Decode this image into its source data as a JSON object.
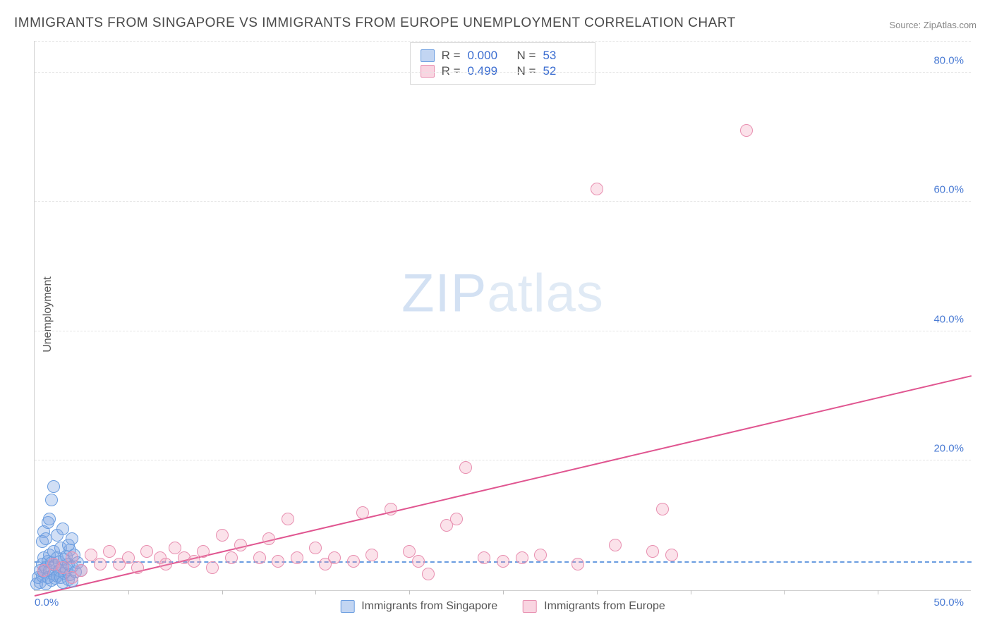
{
  "title": "IMMIGRANTS FROM SINGAPORE VS IMMIGRANTS FROM EUROPE UNEMPLOYMENT CORRELATION CHART",
  "source": "Source: ZipAtlas.com",
  "ylabel": "Unemployment",
  "watermark_a": "ZIP",
  "watermark_b": "atlas",
  "chart": {
    "type": "scatter",
    "xlim": [
      0,
      50
    ],
    "ylim": [
      0,
      85
    ],
    "ytick_values": [
      20,
      40,
      60,
      80
    ],
    "ytick_labels": [
      "20.0%",
      "40.0%",
      "60.0%",
      "80.0%"
    ],
    "xtick_values": [
      5,
      10,
      15,
      20,
      25,
      30,
      35,
      40,
      45
    ],
    "x_corner_left": "0.0%",
    "x_corner_right": "50.0%",
    "background_color": "#ffffff",
    "grid_color": "#e4e4e4",
    "point_radius": 9,
    "series": [
      {
        "name": "Immigrants from Singapore",
        "key": "singapore",
        "color_fill": "rgba(133,172,230,0.38)",
        "color_stroke": "#6a9de0",
        "r_value": "0.000",
        "n_value": "53",
        "trend": {
          "x1": 0,
          "y1": 4.2,
          "x2": 5,
          "y2": 4.2,
          "dashed": true,
          "color": "#6a9de0"
        },
        "points": [
          [
            0.1,
            1.0
          ],
          [
            0.2,
            2.0
          ],
          [
            0.3,
            3.0
          ],
          [
            0.3,
            1.2
          ],
          [
            0.4,
            4.0
          ],
          [
            0.4,
            2.2
          ],
          [
            0.5,
            5.0
          ],
          [
            0.5,
            2.8
          ],
          [
            0.6,
            3.5
          ],
          [
            0.6,
            1.0
          ],
          [
            0.7,
            4.5
          ],
          [
            0.7,
            2.0
          ],
          [
            0.8,
            3.0
          ],
          [
            0.8,
            5.5
          ],
          [
            0.9,
            4.2
          ],
          [
            0.9,
            1.5
          ],
          [
            1.0,
            6.0
          ],
          [
            1.0,
            2.5
          ],
          [
            1.1,
            3.8
          ],
          [
            1.1,
            1.8
          ],
          [
            1.2,
            5.0
          ],
          [
            1.2,
            2.2
          ],
          [
            1.3,
            4.4
          ],
          [
            1.3,
            3.0
          ],
          [
            1.4,
            2.0
          ],
          [
            1.4,
            6.5
          ],
          [
            1.5,
            3.5
          ],
          [
            1.5,
            1.2
          ],
          [
            1.6,
            4.8
          ],
          [
            1.6,
            2.6
          ],
          [
            1.7,
            3.2
          ],
          [
            1.7,
            5.2
          ],
          [
            1.8,
            1.6
          ],
          [
            1.8,
            4.0
          ],
          [
            1.9,
            2.4
          ],
          [
            1.9,
            6.2
          ],
          [
            2.0,
            3.6
          ],
          [
            2.0,
            1.4
          ],
          [
            2.1,
            5.4
          ],
          [
            2.2,
            2.8
          ],
          [
            2.3,
            4.2
          ],
          [
            2.5,
            3.0
          ],
          [
            0.5,
            9.0
          ],
          [
            0.7,
            10.5
          ],
          [
            0.8,
            11.0
          ],
          [
            0.9,
            14.0
          ],
          [
            1.0,
            16.0
          ],
          [
            0.4,
            7.5
          ],
          [
            0.6,
            8.0
          ],
          [
            1.2,
            8.5
          ],
          [
            1.5,
            9.5
          ],
          [
            1.8,
            7.0
          ],
          [
            2.0,
            8.0
          ]
        ]
      },
      {
        "name": "Immigrants from Europe",
        "key": "europe",
        "color_fill": "rgba(240,150,180,0.28)",
        "color_stroke": "#e88fb0",
        "r_value": "0.499",
        "n_value": "52",
        "trend": {
          "x1": 0,
          "y1": -1,
          "x2": 50,
          "y2": 33,
          "dashed": false,
          "color": "#e05590"
        },
        "points": [
          [
            0.5,
            3.0
          ],
          [
            1.0,
            4.0
          ],
          [
            1.5,
            3.5
          ],
          [
            2.0,
            5.0
          ],
          [
            2.5,
            3.0
          ],
          [
            3.0,
            5.5
          ],
          [
            3.5,
            4.0
          ],
          [
            4.0,
            6.0
          ],
          [
            4.5,
            4.0
          ],
          [
            5.0,
            5.0
          ],
          [
            5.5,
            3.5
          ],
          [
            6.0,
            6.0
          ],
          [
            6.7,
            5.0
          ],
          [
            7.0,
            4.0
          ],
          [
            7.5,
            6.5
          ],
          [
            8.0,
            5.0
          ],
          [
            8.5,
            4.5
          ],
          [
            9.0,
            6.0
          ],
          [
            9.5,
            3.5
          ],
          [
            10.0,
            8.5
          ],
          [
            10.5,
            5.0
          ],
          [
            11.0,
            7.0
          ],
          [
            12.0,
            5.0
          ],
          [
            12.5,
            8.0
          ],
          [
            13.0,
            4.5
          ],
          [
            13.5,
            11.0
          ],
          [
            14.0,
            5.0
          ],
          [
            15.0,
            6.5
          ],
          [
            15.5,
            4.0
          ],
          [
            16.0,
            5.0
          ],
          [
            17.0,
            4.5
          ],
          [
            17.5,
            12.0
          ],
          [
            18.0,
            5.5
          ],
          [
            19.0,
            12.5
          ],
          [
            20.0,
            6.0
          ],
          [
            20.5,
            4.5
          ],
          [
            21.0,
            2.5
          ],
          [
            22.0,
            10.0
          ],
          [
            22.5,
            11.0
          ],
          [
            23.0,
            19.0
          ],
          [
            24.0,
            5.0
          ],
          [
            25.0,
            4.5
          ],
          [
            26.0,
            5.0
          ],
          [
            27.0,
            5.5
          ],
          [
            29.0,
            4.0
          ],
          [
            30.0,
            62.0
          ],
          [
            31.0,
            7.0
          ],
          [
            33.0,
            6.0
          ],
          [
            33.5,
            12.5
          ],
          [
            34.0,
            5.5
          ],
          [
            38.0,
            71.0
          ],
          [
            2.0,
            2.0
          ]
        ]
      }
    ]
  },
  "legend_top": {
    "r_label": "R =",
    "n_label": "N ="
  },
  "legend_bottom": {
    "items": [
      "Immigrants from Singapore",
      "Immigrants from Europe"
    ]
  }
}
